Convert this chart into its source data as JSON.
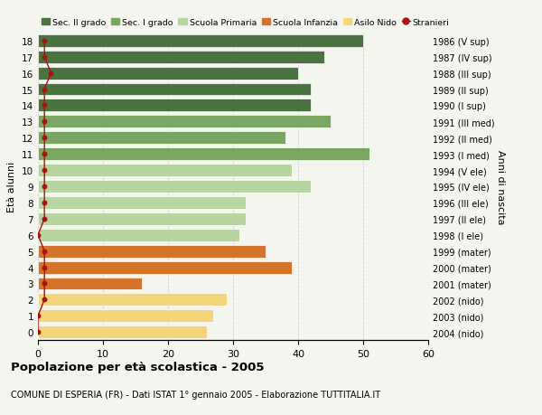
{
  "ages": [
    0,
    1,
    2,
    3,
    4,
    5,
    6,
    7,
    8,
    9,
    10,
    11,
    12,
    13,
    14,
    15,
    16,
    17,
    18
  ],
  "values": [
    26,
    27,
    29,
    16,
    39,
    35,
    31,
    32,
    32,
    42,
    39,
    51,
    38,
    45,
    42,
    42,
    40,
    44,
    50
  ],
  "anni_nascita": [
    "2004 (nido)",
    "2003 (nido)",
    "2002 (nido)",
    "2001 (mater)",
    "2000 (mater)",
    "1999 (mater)",
    "1998 (I ele)",
    "1997 (II ele)",
    "1996 (III ele)",
    "1995 (IV ele)",
    "1994 (V ele)",
    "1993 (I med)",
    "1992 (II med)",
    "1991 (III med)",
    "1990 (I sup)",
    "1989 (II sup)",
    "1988 (III sup)",
    "1987 (IV sup)",
    "1986 (V sup)"
  ],
  "stranieri_values": [
    0,
    0,
    1,
    1,
    1,
    1,
    0,
    1,
    1,
    1,
    1,
    1,
    1,
    1,
    1,
    1,
    2,
    1,
    1
  ],
  "bar_colors": {
    "Sec. II grado": "#4a7340",
    "Sec. I grado": "#7aa661",
    "Scuola Primaria": "#b8d4a0",
    "Scuola Infanzia": "#d4732a",
    "Asilo Nido": "#f5d57a"
  },
  "age_to_category": {
    "0": "Asilo Nido",
    "1": "Asilo Nido",
    "2": "Asilo Nido",
    "3": "Scuola Infanzia",
    "4": "Scuola Infanzia",
    "5": "Scuola Infanzia",
    "6": "Scuola Primaria",
    "7": "Scuola Primaria",
    "8": "Scuola Primaria",
    "9": "Scuola Primaria",
    "10": "Scuola Primaria",
    "11": "Sec. I grado",
    "12": "Sec. I grado",
    "13": "Sec. I grado",
    "14": "Sec. II grado",
    "15": "Sec. II grado",
    "16": "Sec. II grado",
    "17": "Sec. II grado",
    "18": "Sec. II grado"
  },
  "legend_order": [
    "Sec. II grado",
    "Sec. I grado",
    "Scuola Primaria",
    "Scuola Infanzia",
    "Asilo Nido",
    "Stranieri"
  ],
  "stranieri_color": "#aa1111",
  "title": "Popolazione per età scolastica - 2005",
  "subtitle": "COMUNE DI ESPERIA (FR) - Dati ISTAT 1° gennaio 2005 - Elaborazione TUTTITALIA.IT",
  "ylabel_left": "Età alunni",
  "ylabel_right": "Anni di nascita",
  "xlim": [
    0,
    60
  ],
  "xticks": [
    0,
    10,
    20,
    30,
    40,
    50,
    60
  ],
  "background_color": "#f5f5f0",
  "grid_color": "#cccccc",
  "bar_height": 0.78,
  "bar_edge_color": "white",
  "bar_edge_width": 0.5
}
